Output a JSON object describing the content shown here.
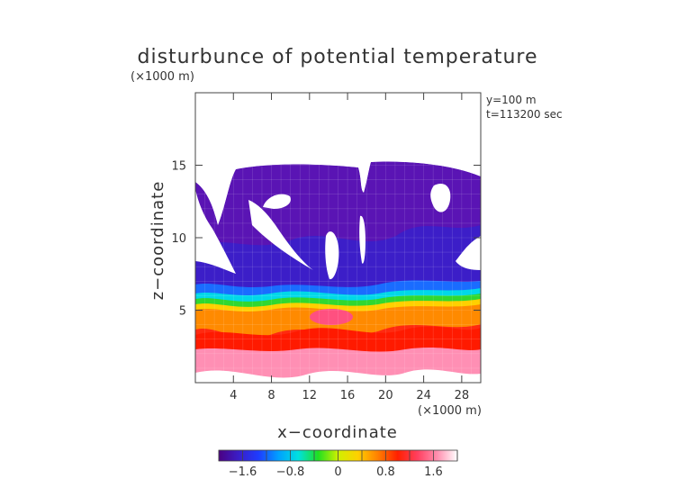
{
  "chart_data": {
    "type": "heatmap",
    "title": "disturbunce of potential temperature",
    "yunit": "(×1000 m)",
    "xunit": "(×1000 m)",
    "xlabel": "x−coordinate",
    "ylabel": "z−coordinate",
    "annotation": [
      "y=100 m",
      "t=113200 sec"
    ],
    "xlim": [
      0,
      30
    ],
    "ylim": [
      0,
      20
    ],
    "xticks": [
      4,
      8,
      12,
      16,
      20,
      24,
      28
    ],
    "yticks": [
      5,
      10,
      15
    ],
    "colorbar": {
      "range": [
        -2.0,
        2.0
      ],
      "ticks": [
        -1.6,
        -0.8,
        0,
        0.8,
        1.6
      ],
      "tick_labels": [
        "−1.6",
        "−0.8",
        "0",
        "0.8",
        "1.6"
      ],
      "colors": [
        "#4b0082",
        "#3a1ec8",
        "#1e3cff",
        "#00a0ff",
        "#00e0e0",
        "#20e020",
        "#d0f000",
        "#ffd000",
        "#ff8000",
        "#ff2000",
        "#ff4060",
        "#ff90b0",
        "#ffffff"
      ]
    },
    "field": {
      "description_levels": "upper layer mostly -1.2 to -1.8, lower layer 0.8 to 2.0",
      "upper_cold_top_z": [
        15.3,
        13.5
      ],
      "interface_z": 6.3
    }
  }
}
